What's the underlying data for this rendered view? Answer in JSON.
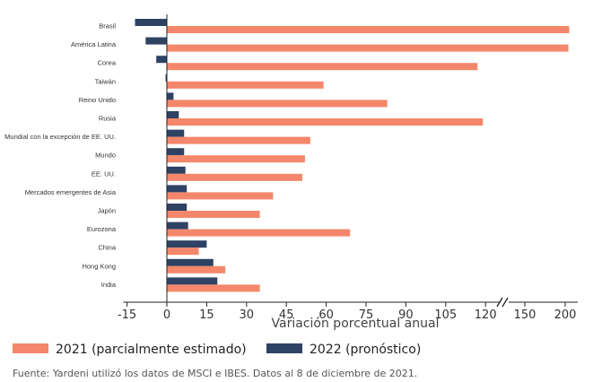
{
  "chart_data": {
    "type": "bar",
    "orientation": "horizontal",
    "categories": [
      "Brasil",
      "América Latina",
      "Corea",
      "Taiwán",
      "Reino Unido",
      "Rusia",
      "Mundial con la excepción de EE. UU.",
      "Mundo",
      "EE. UU.",
      "Mercados emergentes de Asia",
      "Japón",
      "Eurozona",
      "China",
      "Hong Kong",
      "India"
    ],
    "series": [
      {
        "name": "2021 (parcialmente estimado)",
        "color": "#f4876b",
        "values": [
          205,
          204,
          117,
          59,
          83,
          119,
          54,
          52,
          51,
          40,
          35,
          69,
          12,
          22,
          35
        ]
      },
      {
        "name": "2022 (pronóstico)",
        "color": "#2e4263",
        "values": [
          -12,
          -8,
          -4,
          -0.5,
          2.5,
          4.5,
          6.5,
          6.5,
          7,
          7.5,
          7.5,
          8,
          15,
          17.5,
          19
        ]
      }
    ],
    "xticks": [
      "-15",
      "0",
      "15",
      "30",
      "45",
      "60",
      "75",
      "90",
      "105",
      "120",
      "150",
      "200"
    ],
    "xlabel": "Variación porcentual anual",
    "axis_break": "between 120 and 150",
    "legend_position": "bottom-left",
    "grid": false
  },
  "source": "Fuente: Yardeni utilizó los datos de MSCI e IBES. Datos al 8 de diciembre de 2021."
}
